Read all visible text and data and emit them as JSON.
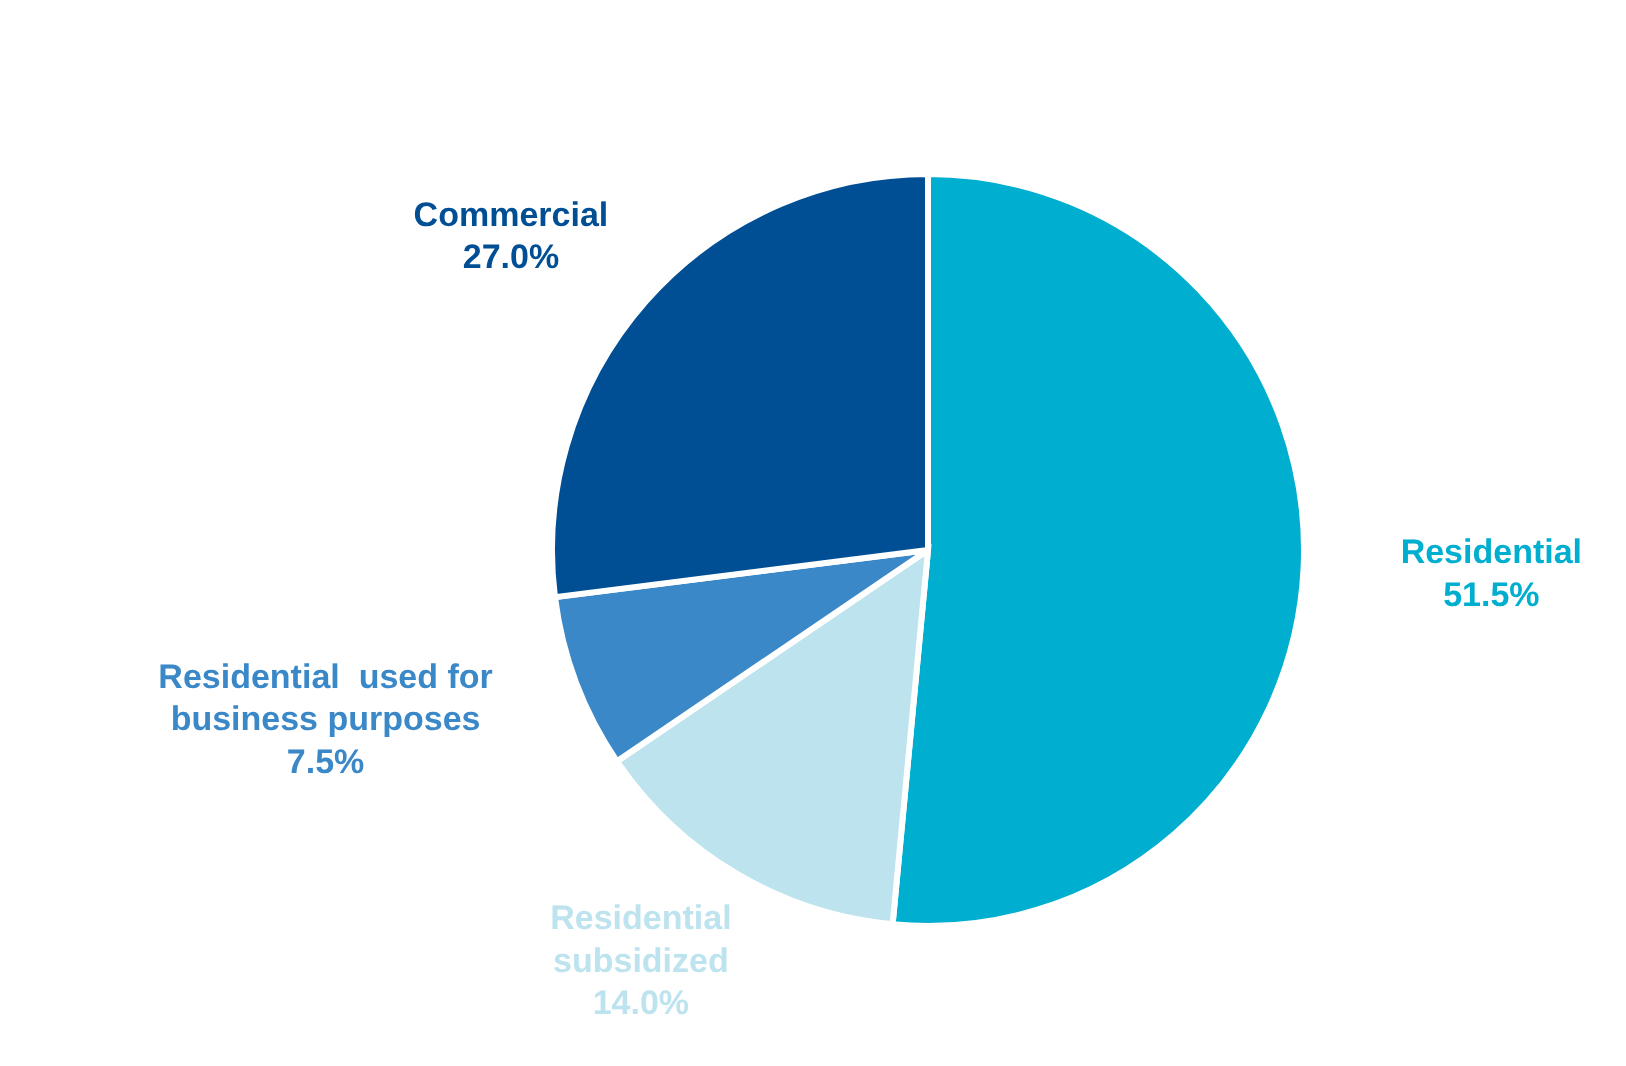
{
  "chart_data": {
    "type": "pie",
    "categories": [
      "Residential",
      "Residential subsidized",
      "Residential  used for business purposes",
      "Commercial"
    ],
    "values": [
      51.5,
      14.0,
      7.5,
      27.0
    ],
    "colors": [
      "#00aecf",
      "#bde3ee",
      "#3b88c8",
      "#004f94"
    ],
    "value_labels": [
      "51.5%",
      "14.0%",
      "7.5%",
      "27.0%"
    ]
  }
}
